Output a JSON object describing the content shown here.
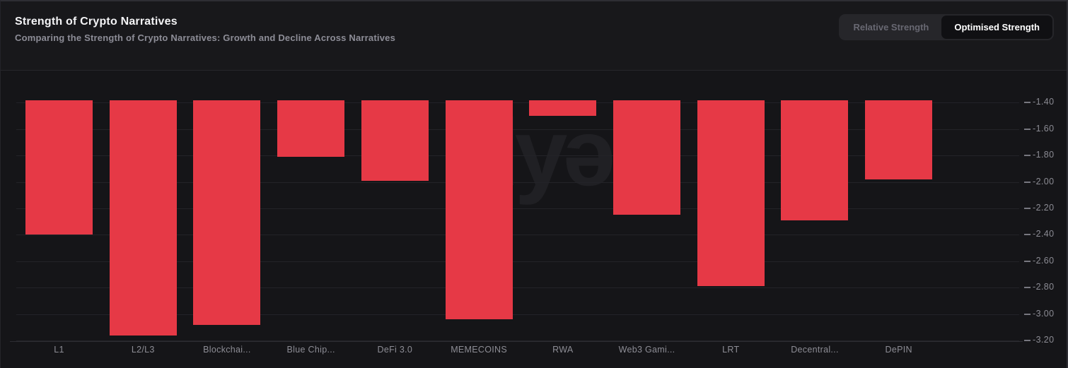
{
  "header": {
    "title": "Strength of Crypto Narratives",
    "subtitle": "Comparing the Strength of Crypto Narratives: Growth and Decline Across Narratives"
  },
  "toggle": {
    "options": [
      "Relative Strength",
      "Optimised Strength"
    ],
    "active": "Optimised Strength"
  },
  "watermark": {
    "text": "dyər"
  },
  "colors": {
    "background": "#151518",
    "bar": "#e63946",
    "gridline": "#232328",
    "axis_text": "#8b8b93"
  },
  "chart_data": {
    "type": "bar",
    "title": "Strength of Crypto Narratives",
    "categories": [
      "L1",
      "L2/L3",
      "Blockchai...",
      "Blue Chip...",
      "DeFi 3.0",
      "MEMECOINS",
      "RWA",
      "Web3 Gami...",
      "LRT",
      "Decentral...",
      "DePIN"
    ],
    "values": [
      -2.4,
      -3.16,
      -3.08,
      -1.81,
      -1.99,
      -3.04,
      -1.5,
      -2.25,
      -2.79,
      -2.29,
      -1.98
    ],
    "bar_color": "#e63946",
    "y_ticks": [
      -1.4,
      -1.6,
      -1.8,
      -2.0,
      -2.2,
      -2.4,
      -2.6,
      -2.8,
      -3.0,
      -3.2
    ],
    "ylim": [
      -3.205,
      -1.38
    ],
    "y_axis_side": "right",
    "xlabel": "",
    "ylabel": "",
    "grid": "horizontal",
    "legend": "none"
  }
}
